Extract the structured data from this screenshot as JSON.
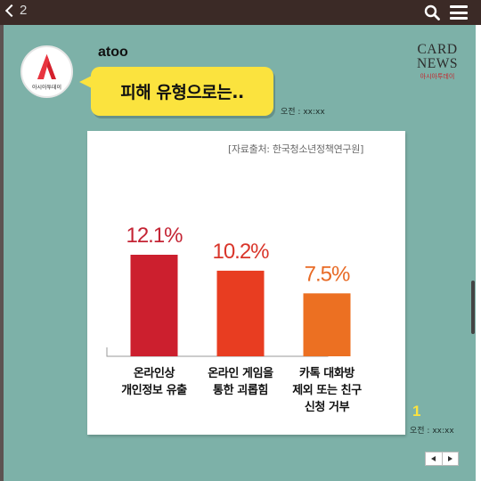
{
  "topbar": {
    "back_count": "2",
    "back_icon": "chevron-left-icon",
    "search_icon": "search-icon",
    "menu_icon": "hamburger-menu-icon"
  },
  "message": {
    "sender": "atoo",
    "avatar_caption": "아시아투데이",
    "bubble_text": "피해 유형으로는..",
    "time": "오전 : xx:xx"
  },
  "logo": {
    "line1": "CARD",
    "line2": "NEWS",
    "line3": "아시아투데이"
  },
  "chart_source": "[자료출처: 한국청소년정책연구원]",
  "chart_data": {
    "type": "bar",
    "categories": [
      [
        "온라인상",
        "개인정보 유출"
      ],
      [
        "온라인 게임을",
        "통한 괴롭힘"
      ],
      [
        "카톡 대화방",
        "제외 또는 친구",
        "신청 거부"
      ]
    ],
    "values": [
      12.1,
      10.2,
      7.5
    ],
    "value_labels": [
      "12.1%",
      "10.2%",
      "7.5%"
    ],
    "bar_colors": [
      "#cc1f2e",
      "#e83d21",
      "#ec7022"
    ],
    "label_colors": [
      "#c42434",
      "#d9352a",
      "#e86a25"
    ],
    "ylim": [
      0,
      15
    ],
    "grid": false
  },
  "footer": {
    "page_num": "1",
    "time": "오전 : xx:xx",
    "prev_icon": "triangle-left-icon",
    "next_icon": "triangle-right-icon"
  }
}
